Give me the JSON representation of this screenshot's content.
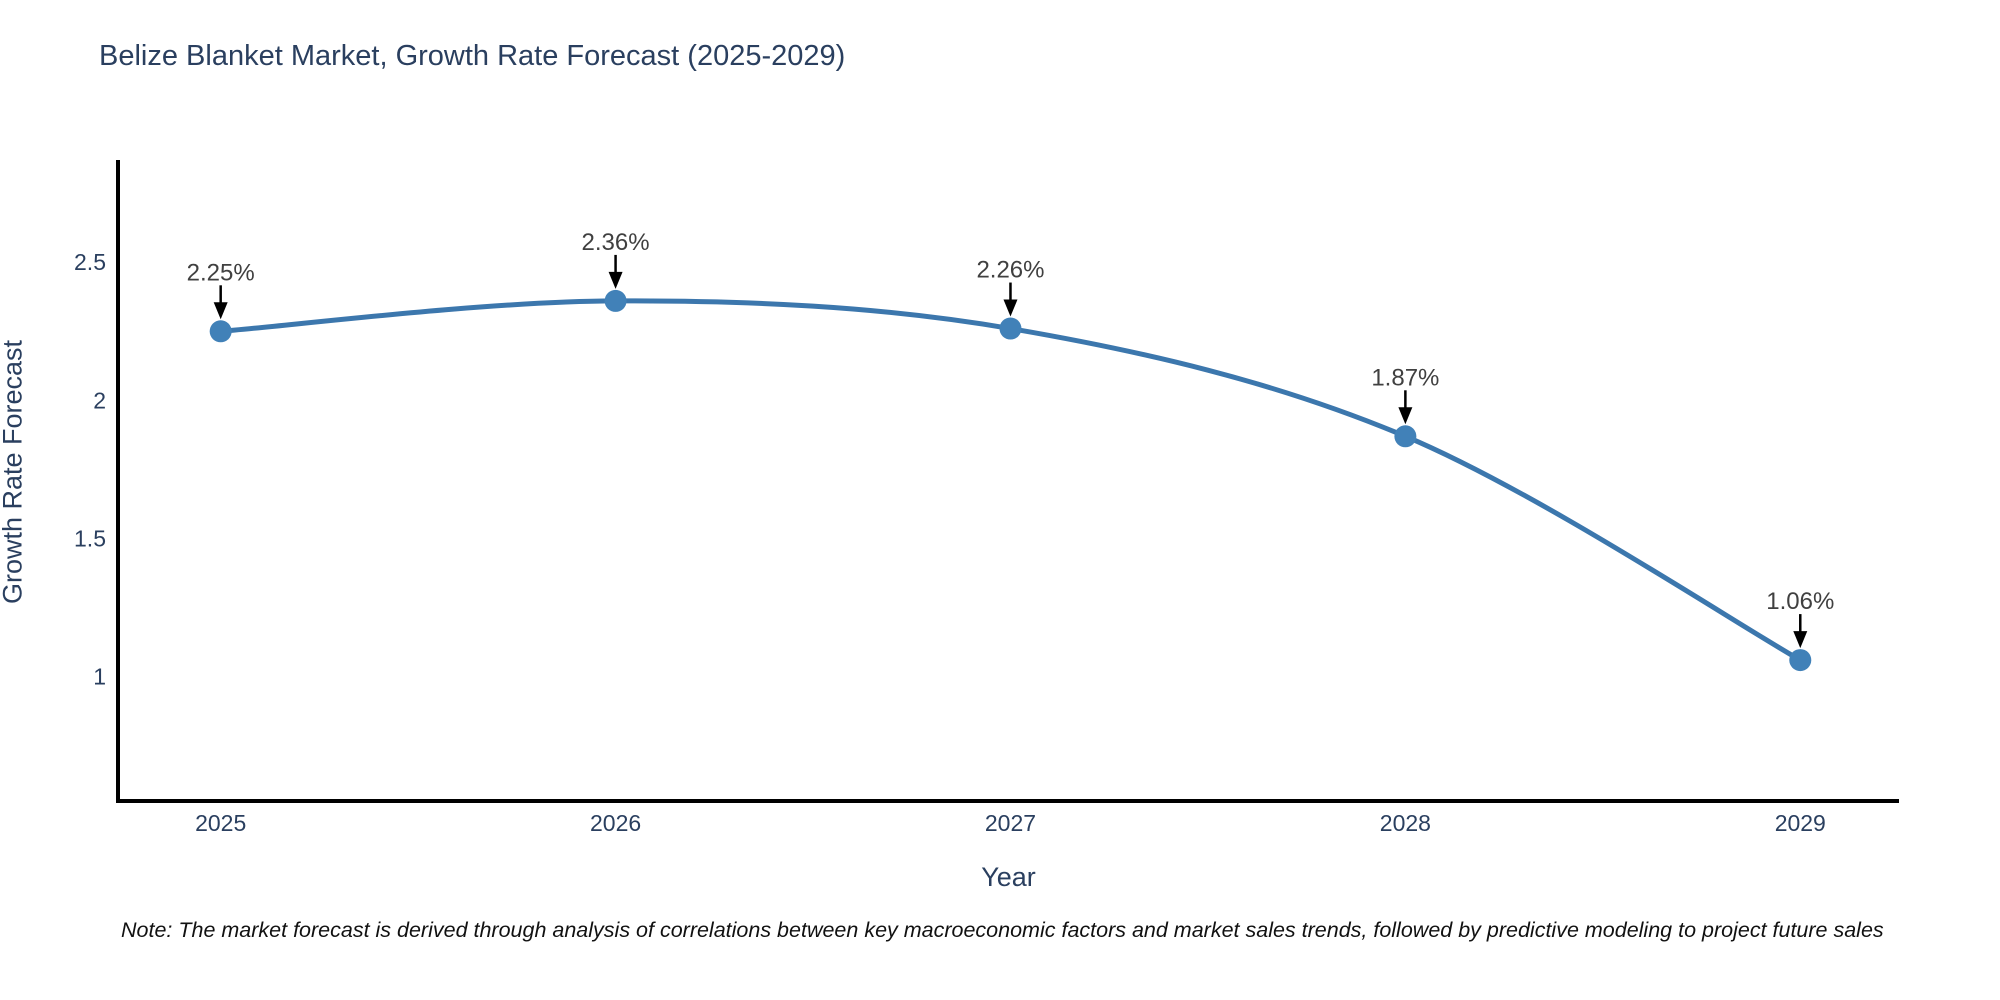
{
  "title": {
    "text": "Belize Blanket Market, Growth Rate Forecast (2025-2029)"
  },
  "note": {
    "text": "Note: The market forecast is derived through analysis of correlations between key macroeconomic factors and market sales trends, followed by predictive modeling to project future sales"
  },
  "chart_data": {
    "type": "line",
    "line_shape": "spline",
    "title": "Belize Blanket Market, Growth Rate Forecast (2025-2029)",
    "xlabel": "Year",
    "ylabel": "Growth Rate Forecast",
    "x": [
      2025,
      2026,
      2027,
      2028,
      2029
    ],
    "y": [
      2.25,
      2.36,
      2.26,
      1.87,
      1.06
    ],
    "point_labels": [
      "2.25%",
      "2.36%",
      "2.26%",
      "1.87%",
      "1.06%"
    ],
    "y_ticks": [
      2.5,
      2,
      1.5,
      1
    ],
    "xlim": [
      2024.74,
      2029.25
    ],
    "ylim": [
      0.55,
      2.87
    ],
    "grid": false,
    "legend": false,
    "colors": {
      "line": "#3c77ad",
      "marker": "#4181b8",
      "axis_line": "#000000",
      "tick_text": "#2a3f5f",
      "annotation_text": "#404040",
      "annotation_arrow": "#000000",
      "background": "#ffffff"
    }
  }
}
